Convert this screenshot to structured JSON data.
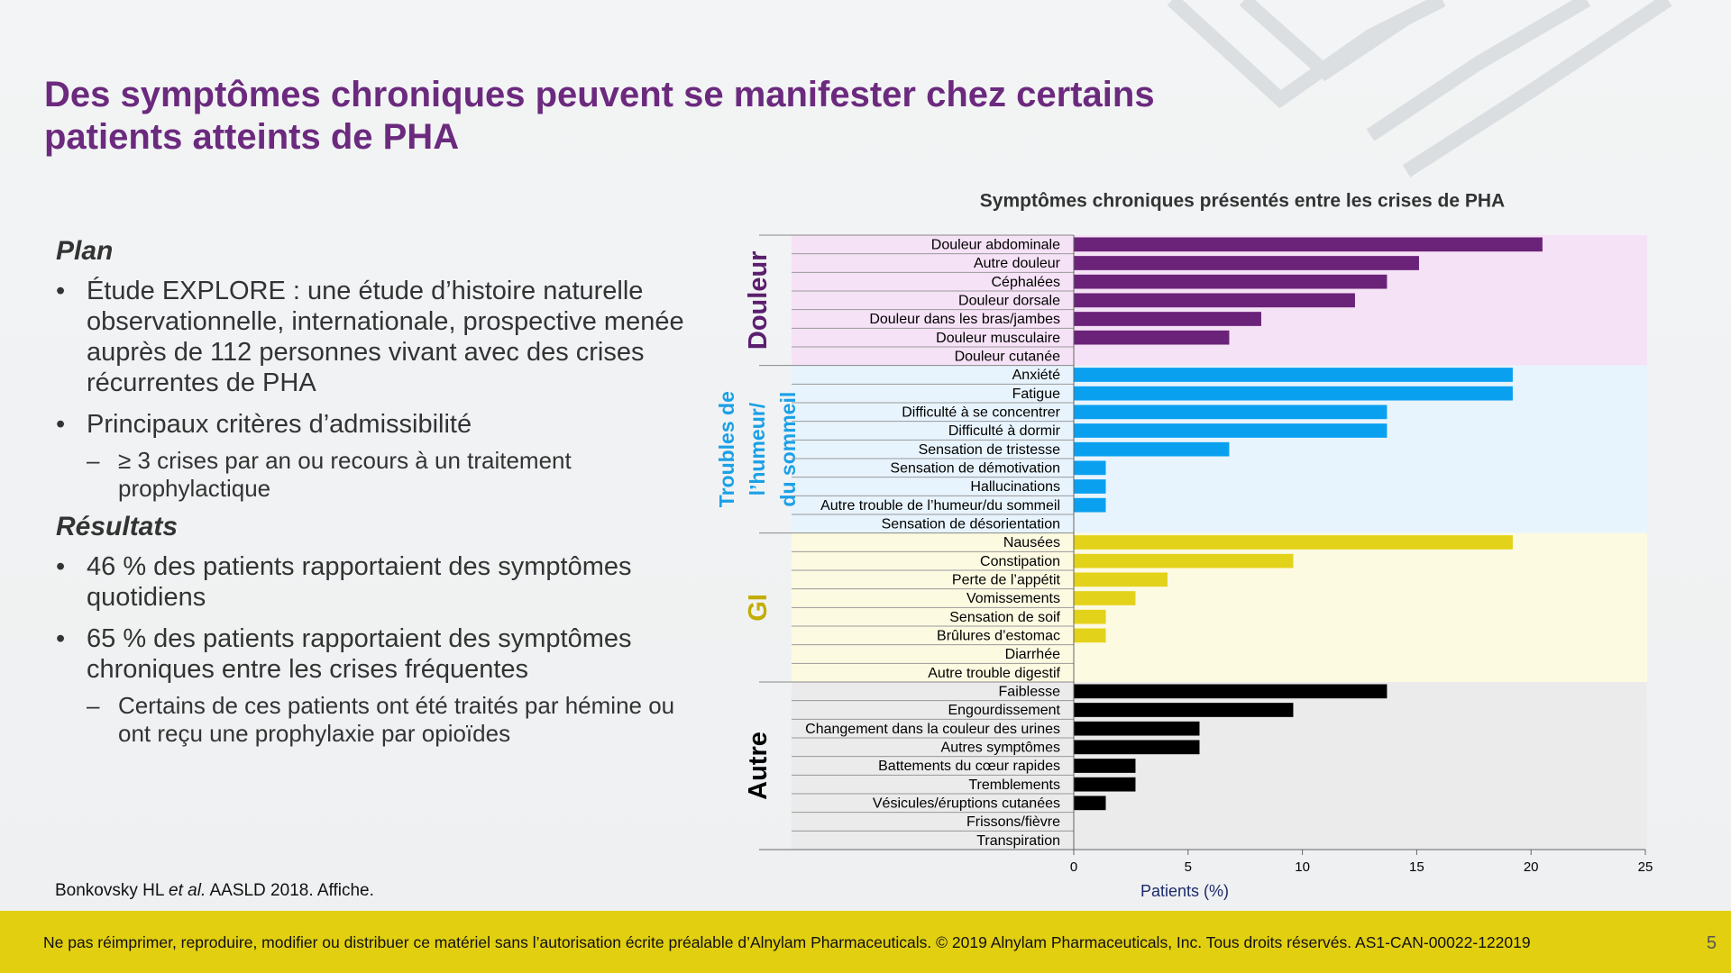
{
  "header": {
    "title": "Des symptômes chroniques peuvent se manifester chez certains patients atteints de PHA"
  },
  "content": {
    "plan_heading": "Plan",
    "plan_bullets": [
      {
        "text": "Étude EXPLORE : une étude d’histoire naturelle observationnelle, internationale, prospective menée auprès de 112 personnes vivant avec des crises récurrentes de PHA",
        "sub": []
      },
      {
        "text": "Principaux critères d’admissibilité",
        "sub": [
          "≥ 3 crises par an ou recours à un traitement prophylactique"
        ]
      }
    ],
    "results_heading": "Résultats",
    "results_bullets": [
      {
        "text": "46 % des patients rapportaient des symptômes quotidiens",
        "sub": []
      },
      {
        "text": "65 % des patients rapportaient des symptômes chroniques entre les crises fréquentes",
        "sub": [
          "Certains de ces patients ont été traités par hémine ou ont reçu une prophylaxie par opioïdes"
        ]
      }
    ]
  },
  "citation": {
    "authors": "Bonkovsky HL",
    "etal": "et al.",
    "rest": "AASLD 2018. Affiche."
  },
  "chart_data": {
    "type": "bar",
    "orientation": "horizontal",
    "title": "Symptômes chroniques présentés entre les crises de PHA",
    "x_label": "Patients (%)",
    "xlim": [
      0,
      25
    ],
    "xticks": [
      0,
      5,
      10,
      15,
      20,
      25
    ],
    "groups": [
      {
        "name": [
          "Douleur"
        ],
        "label_color": "#5b1e6e",
        "color": "#6a2378",
        "background": "#f6e2f6",
        "categories": [
          "Douleur abdominale",
          "Autre douleur",
          "Céphalées",
          "Douleur dorsale",
          "Douleur dans les bras/jambes",
          "Douleur musculaire",
          "Douleur cutanée"
        ],
        "values": [
          20.5,
          15.1,
          13.7,
          12.3,
          8.2,
          6.8,
          0
        ]
      },
      {
        "name": [
          "Troubles de",
          "l’humeur/",
          "du sommeil"
        ],
        "label_color": "#1ba0e6",
        "color": "#0aa0f0",
        "background": "#e8f4fd",
        "categories": [
          "Anxiété",
          "Fatigue",
          "Difficulté à se concentrer",
          "Difficulté à dormir",
          "Sensation de tristesse",
          "Sensation de démotivation",
          "Hallucinations",
          "Autre trouble de l’humeur/du sommeil",
          "Sensation de désorientation"
        ],
        "values": [
          19.2,
          19.2,
          13.7,
          13.7,
          6.8,
          1.4,
          1.4,
          1.4,
          0
        ]
      },
      {
        "name": [
          "GI"
        ],
        "label_color": "#c2ad00",
        "color": "#e3d21a",
        "background": "#fdfae2",
        "categories": [
          "Nausées",
          "Constipation",
          "Perte de l’appétit",
          "Vomissements",
          "Sensation de soif",
          "Brûlures d’estomac",
          "Diarrhée",
          "Autre trouble digestif"
        ],
        "values": [
          19.2,
          9.6,
          4.1,
          2.7,
          1.4,
          1.4,
          0,
          0
        ]
      },
      {
        "name": [
          "Autre"
        ],
        "label_color": "#000000",
        "color": "#000000",
        "background": "#ebebeb",
        "categories": [
          "Faiblesse",
          "Engourdissement",
          "Changement dans la couleur des urines",
          "Autres symptômes",
          "Battements du cœur rapides",
          "Tremblements",
          "Vésicules/éruptions cutanées",
          "Frissons/fièvre",
          "Transpiration"
        ],
        "values": [
          13.7,
          9.6,
          5.5,
          5.5,
          2.7,
          2.7,
          1.4,
          0,
          0
        ]
      }
    ]
  },
  "footer": {
    "notice": "Ne pas réimprimer, reproduire, modifier ou distribuer ce matériel sans l’autorisation écrite préalable d’Alnylam Pharmaceuticals. © 2019 Alnylam Pharmaceuticals, Inc. Tous droits réservés. AS1-CAN-00022-122019",
    "page": "5"
  }
}
